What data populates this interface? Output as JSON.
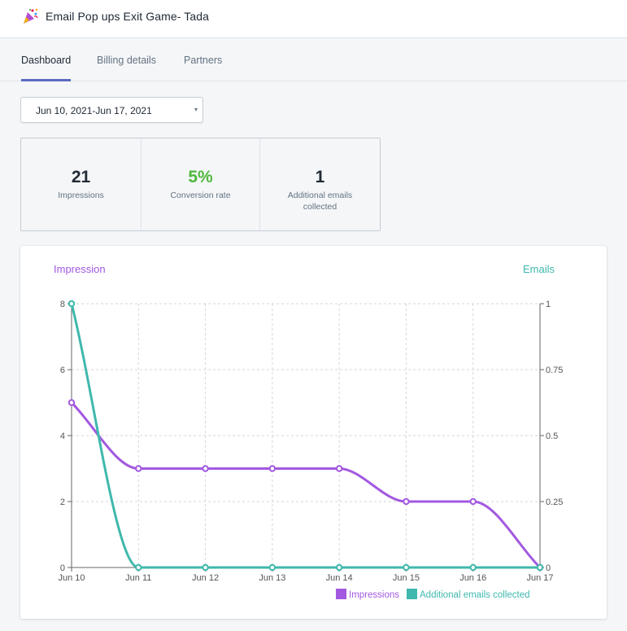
{
  "app": {
    "title": "Email Pop ups Exit Game- Tada",
    "icon": "party-popper-icon"
  },
  "tabs": [
    {
      "label": "Dashboard",
      "active": true
    },
    {
      "label": "Billing details",
      "active": false
    },
    {
      "label": "Partners",
      "active": false
    }
  ],
  "date_range": {
    "value": "Jun 10, 2021-Jun 17, 2021",
    "caret": "▾"
  },
  "stats": [
    {
      "value": "21",
      "label": "Impressions"
    },
    {
      "value": "5%",
      "label": "Conversion rate"
    },
    {
      "value": "1",
      "label": "Additional emails collected"
    }
  ],
  "colors": {
    "impressions": "#a259e0",
    "emails": "#3fb8ad",
    "accent": "#5c6ac4",
    "positive": "#50b83c"
  },
  "chart_data": {
    "type": "line",
    "left_axis_title": "Impression",
    "right_axis_title": "Emails",
    "categories": [
      "Jun 10",
      "Jun 11",
      "Jun 12",
      "Jun 13",
      "Jun 14",
      "Jun 15",
      "Jun 16",
      "Jun 17"
    ],
    "y_left": {
      "min": 0,
      "max": 8,
      "ticks": [
        "0",
        "2",
        "4",
        "6",
        "8"
      ]
    },
    "y_right": {
      "min": 0,
      "max": 1,
      "ticks": [
        "0",
        "0.25",
        "0.5",
        "0.75",
        "1"
      ]
    },
    "grid": true,
    "legend_position": "bottom-right",
    "series": [
      {
        "name": "Impressions",
        "axis": "left",
        "values": [
          5,
          3,
          3,
          3,
          3,
          2,
          2,
          0
        ]
      },
      {
        "name": "Additional emails collected",
        "axis": "right",
        "values": [
          1,
          0,
          0,
          0,
          0,
          0,
          0,
          0
        ]
      }
    ]
  }
}
